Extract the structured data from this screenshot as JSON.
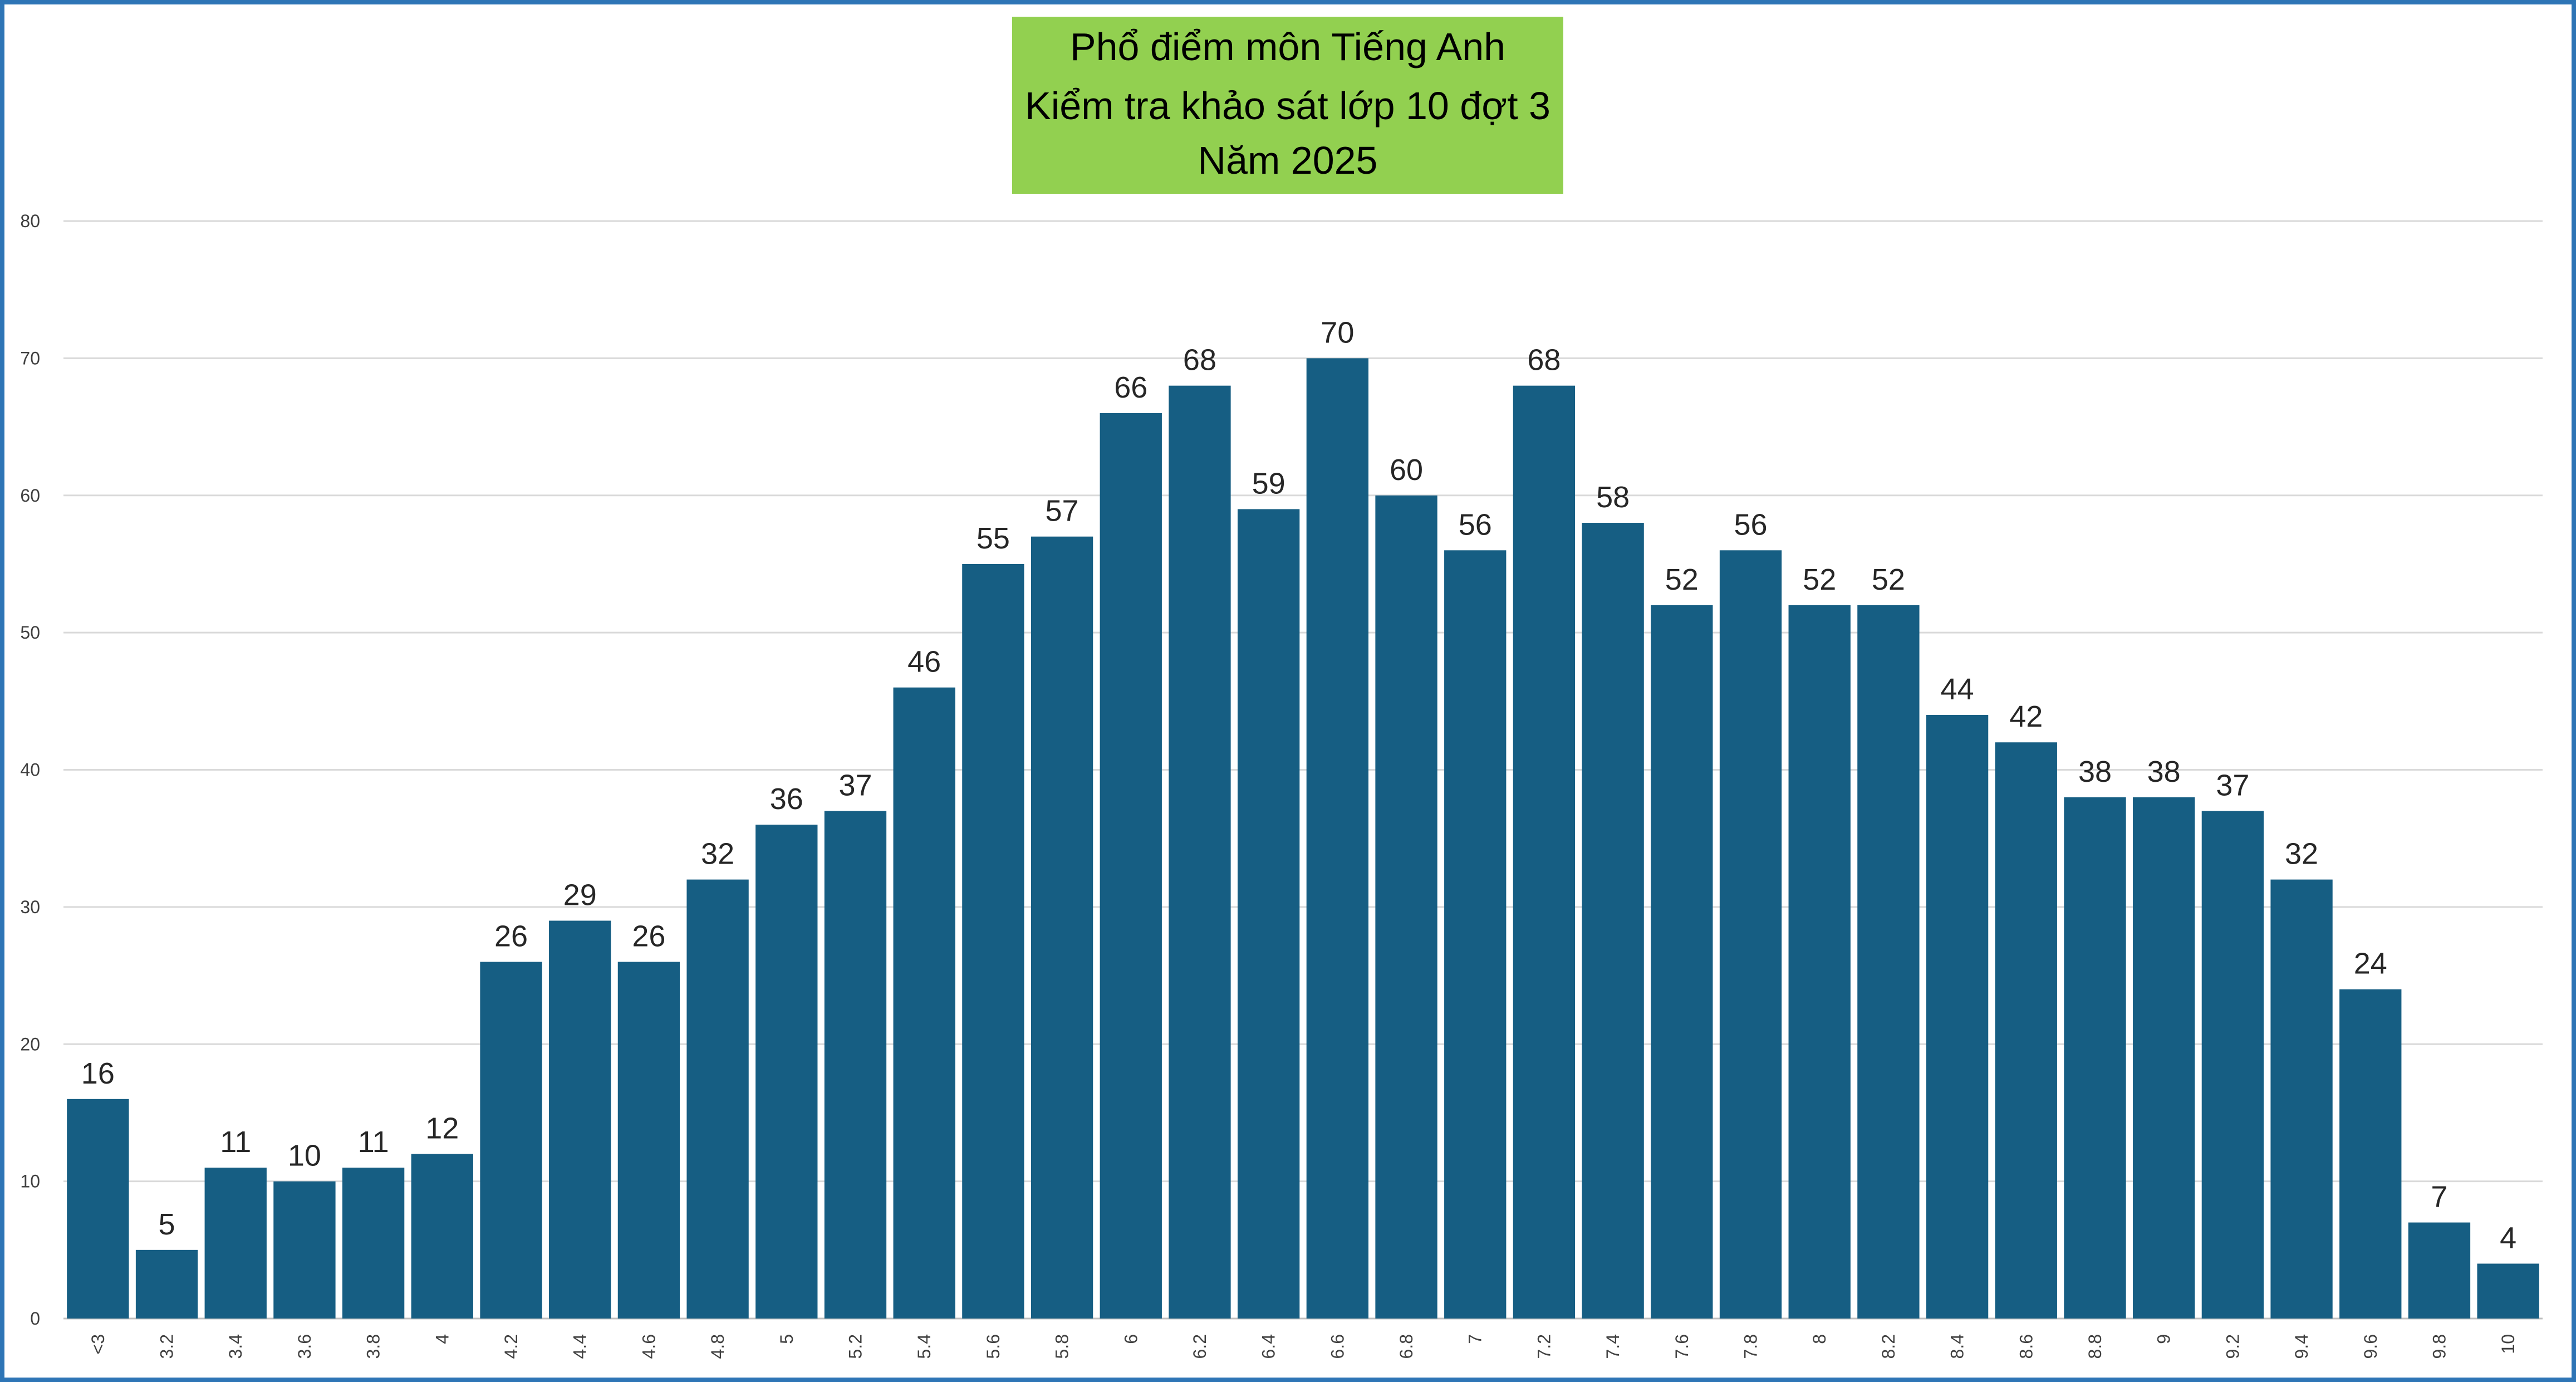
{
  "chart_data": {
    "type": "bar",
    "title_lines": [
      "Phổ điểm môn Tiếng Anh",
      "Kiểm tra khảo sát lớp 10 đợt 3",
      "Năm 2025"
    ],
    "categories": [
      "<3",
      "3.2",
      "3.4",
      "3.6",
      "3.8",
      "4",
      "4.2",
      "4.4",
      "4.6",
      "4.8",
      "5",
      "5.2",
      "5.4",
      "5.6",
      "5.8",
      "6",
      "6.2",
      "6.4",
      "6.6",
      "6.8",
      "7",
      "7.2",
      "7.4",
      "7.6",
      "7.8",
      "8",
      "8.2",
      "8.4",
      "8.6",
      "8.8",
      "9",
      "9.2",
      "9.4",
      "9.6",
      "9.8",
      "10"
    ],
    "values": [
      16,
      5,
      11,
      10,
      11,
      12,
      26,
      29,
      26,
      32,
      36,
      37,
      46,
      55,
      57,
      66,
      68,
      59,
      70,
      60,
      56,
      68,
      58,
      52,
      56,
      52,
      52,
      44,
      42,
      38,
      38,
      37,
      32,
      24,
      7,
      4
    ],
    "yticks": [
      0,
      10,
      20,
      30,
      40,
      50,
      60,
      70,
      80
    ],
    "ylim": [
      0,
      80
    ],
    "grid": true,
    "legend": "none",
    "bar_color": "#165e83",
    "title_bg": "#92d050",
    "frame_color": "#2e75b6"
  }
}
